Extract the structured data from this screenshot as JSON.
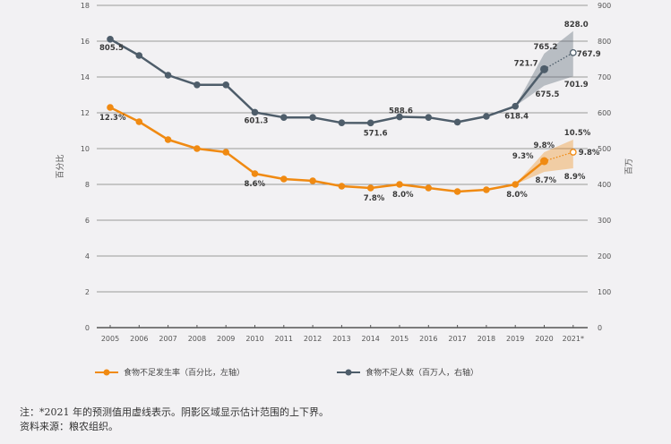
{
  "chart_data": {
    "type": "line",
    "title": "",
    "categories": [
      "2005",
      "2006",
      "2007",
      "2008",
      "2009",
      "2010",
      "2011",
      "2012",
      "2013",
      "2014",
      "2015",
      "2016",
      "2017",
      "2018",
      "2019",
      "2020",
      "2021*"
    ],
    "y_left": {
      "label": "百分比",
      "range": [
        0,
        18
      ],
      "ticks": [
        0,
        2,
        4,
        6,
        8,
        10,
        12,
        14,
        16,
        18
      ]
    },
    "y_right": {
      "label": "百万",
      "range": [
        0,
        900
      ],
      "ticks": [
        0,
        100,
        200,
        300,
        400,
        500,
        600,
        700,
        800,
        900
      ]
    },
    "grid": true,
    "legend_position": "bottom",
    "series": [
      {
        "name": "食物不足发生率（百分比，左轴）",
        "axis": "left",
        "color": "#f08a12",
        "values": [
          12.3,
          11.5,
          10.5,
          10.0,
          9.8,
          8.6,
          8.3,
          8.2,
          7.9,
          7.8,
          8.0,
          7.8,
          7.6,
          7.7,
          8.0,
          9.3,
          9.8
        ],
        "projected_from_index": 15,
        "range_band": {
          "indices": [
            15,
            16
          ],
          "upper": [
            9.8,
            10.5
          ],
          "lower": [
            8.7,
            8.9
          ]
        },
        "labels": [
          {
            "i": 0,
            "text": "12.3%"
          },
          {
            "i": 5,
            "text": "8.6%"
          },
          {
            "i": 9,
            "text": "7.8%"
          },
          {
            "i": 10,
            "text": "8.0%"
          },
          {
            "i": 14,
            "text": "8.0%"
          },
          {
            "i": 15,
            "text": "9.3%"
          },
          {
            "i": 16,
            "text": "9.8%"
          }
        ],
        "band_labels": [
          {
            "i": 15,
            "text": "9.8%",
            "pos": "upper"
          },
          {
            "i": 15,
            "text": "8.7%",
            "pos": "lower"
          },
          {
            "i": 16,
            "text": "10.5%",
            "pos": "upper"
          },
          {
            "i": 16,
            "text": "8.9%",
            "pos": "lower"
          }
        ]
      },
      {
        "name": "食物不足人数（百万人，右轴）",
        "axis": "right",
        "color": "#4e5d6a",
        "values": [
          805.5,
          760,
          705,
          678,
          678,
          601.3,
          587,
          587,
          572,
          571.6,
          588.6,
          587,
          574,
          590,
          618.4,
          721.7,
          767.9
        ],
        "projected_from_index": 15,
        "range_band": {
          "indices": [
            15,
            16
          ],
          "upper": [
            765.2,
            828.0
          ],
          "lower": [
            675.5,
            701.9
          ]
        },
        "labels": [
          {
            "i": 0,
            "text": "805.5"
          },
          {
            "i": 5,
            "text": "601.3"
          },
          {
            "i": 9,
            "text": "571.6"
          },
          {
            "i": 10,
            "text": "588.6"
          },
          {
            "i": 14,
            "text": "618.4"
          },
          {
            "i": 15,
            "text": "721.7"
          },
          {
            "i": 16,
            "text": "767.9"
          }
        ],
        "band_labels": [
          {
            "i": 15,
            "text": "765.2",
            "pos": "upper"
          },
          {
            "i": 15,
            "text": "675.5",
            "pos": "lower"
          },
          {
            "i": 16,
            "text": "828.0",
            "pos": "upper"
          },
          {
            "i": 16,
            "text": "701.9",
            "pos": "lower"
          }
        ]
      }
    ]
  },
  "legend": {
    "orange_label": "食物不足发生率（百分比，左轴）",
    "grey_label": "食物不足人数（百万人，右轴）"
  },
  "notes": {
    "note": "注：*2021 年的预测值用虚线表示。阴影区域显示估计范围的上下界。",
    "source": "资料来源：粮农组织。"
  }
}
